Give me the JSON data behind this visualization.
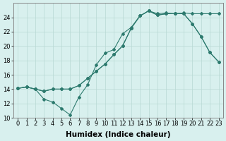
{
  "line1_x": [
    0,
    1,
    2,
    3,
    4,
    5,
    6,
    7,
    8,
    9,
    10,
    11,
    12,
    13,
    14,
    15,
    16,
    17,
    18,
    19,
    20,
    21,
    22,
    23
  ],
  "line1_y": [
    14.1,
    14.3,
    14.0,
    13.7,
    14.0,
    14.0,
    14.0,
    14.5,
    15.5,
    16.5,
    17.5,
    18.8,
    20.0,
    22.5,
    24.2,
    24.9,
    24.5,
    24.6,
    24.5,
    24.6,
    24.5,
    24.5,
    24.5,
    24.5
  ],
  "line2_x": [
    0,
    1,
    2,
    3,
    4,
    5,
    6,
    7,
    8,
    9,
    10,
    11,
    12,
    13,
    14,
    15,
    16,
    17,
    18,
    19,
    20,
    21,
    22,
    23
  ],
  "line2_y": [
    14.1,
    14.3,
    14.0,
    13.7,
    14.0,
    14.0,
    14.0,
    14.5,
    15.5,
    16.5,
    17.5,
    18.8,
    20.0,
    22.5,
    24.2,
    24.9,
    24.3,
    24.5,
    24.5,
    24.5,
    23.1,
    21.3,
    19.1,
    17.8
  ],
  "line3_x": [
    0,
    1,
    2,
    3,
    4,
    5,
    6,
    7,
    8,
    9,
    10,
    11,
    12,
    13,
    14,
    15,
    16,
    17,
    18,
    19,
    20,
    21,
    22,
    23
  ],
  "line3_y": [
    14.1,
    14.3,
    14.0,
    12.6,
    12.2,
    11.3,
    10.4,
    12.9,
    14.6,
    17.4,
    19.0,
    19.5,
    21.7,
    22.6,
    24.2,
    24.9,
    24.3,
    24.5,
    24.5,
    24.5,
    23.1,
    21.3,
    19.1,
    17.8
  ],
  "color": "#2d7a6e",
  "bg_color": "#d8f0ee",
  "grid_color": "#b8d8d4",
  "xlabel": "Humidex (Indice chaleur)",
  "ylim": [
    10,
    26
  ],
  "xlim": [
    -0.5,
    23.5
  ],
  "yticks": [
    10,
    12,
    14,
    16,
    18,
    20,
    22,
    24
  ],
  "xticks": [
    0,
    1,
    2,
    3,
    4,
    5,
    6,
    7,
    8,
    9,
    10,
    11,
    12,
    13,
    14,
    15,
    16,
    17,
    18,
    19,
    20,
    21,
    22,
    23
  ],
  "font_size": 6,
  "label_font_size": 7.5
}
